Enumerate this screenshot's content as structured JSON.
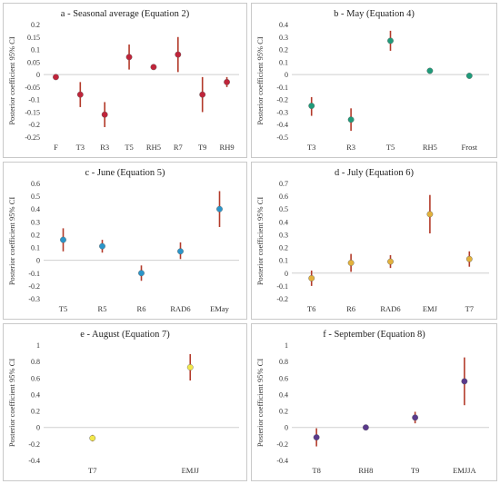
{
  "chart_data": [
    {
      "type": "scatter",
      "title": "a - Seasonal average (Equation 2)",
      "ylabel": "Posterior coefficient  95% CI",
      "ylim": [
        -0.25,
        0.2
      ],
      "ystep": 0.05,
      "yticks": [
        "-0.25",
        "-0.2",
        "-0.15",
        "-0.1",
        "-0.05",
        "0",
        "0.05",
        "0.1",
        "0.15",
        "0.2"
      ],
      "categories": [
        "F",
        "T3",
        "R3",
        "T5",
        "RH5",
        "R7",
        "T9",
        "RH9"
      ],
      "values": [
        -0.01,
        -0.08,
        -0.16,
        0.07,
        0.03,
        0.08,
        -0.08,
        -0.03
      ],
      "lower": [
        -0.01,
        -0.13,
        -0.21,
        0.02,
        0.03,
        0.01,
        -0.15,
        -0.05
      ],
      "upper": [
        -0.01,
        -0.03,
        -0.11,
        0.12,
        0.03,
        0.15,
        -0.01,
        -0.01
      ],
      "marker_color": "#c0243a",
      "bar_color": "#b33a2a"
    },
    {
      "type": "scatter",
      "title": "b - May (Equation 4)",
      "ylabel": "Posterior coefficient  95% CI",
      "ylim": [
        -0.5,
        0.4
      ],
      "ystep": 0.1,
      "yticks": [
        "-0.5",
        "-0.4",
        "-0.3",
        "-0.2",
        "-0.1",
        "0",
        "0.1",
        "0.2",
        "0.3",
        "0.4"
      ],
      "categories": [
        "T3",
        "R3",
        "T5",
        "RH5",
        "Frost"
      ],
      "values": [
        -0.25,
        -0.36,
        0.27,
        0.03,
        -0.01
      ],
      "lower": [
        -0.33,
        -0.45,
        0.19,
        0.03,
        -0.01
      ],
      "upper": [
        -0.18,
        -0.27,
        0.35,
        0.03,
        -0.01
      ],
      "marker_color": "#1f9b7a",
      "bar_color": "#b33a2a"
    },
    {
      "type": "scatter",
      "title": "c - June (Equation 5)",
      "ylabel": "Posterior coefficient  95% CI",
      "ylim": [
        -0.3,
        0.6
      ],
      "ystep": 0.1,
      "yticks": [
        "-0.3",
        "-0.2",
        "-0.1",
        "0",
        "0.1",
        "0.2",
        "0.3",
        "0.4",
        "0.5",
        "0.6"
      ],
      "categories": [
        "T5",
        "R5",
        "R6",
        "RAD6",
        "EMay"
      ],
      "values": [
        0.16,
        0.11,
        -0.1,
        0.07,
        0.4
      ],
      "lower": [
        0.07,
        0.06,
        -0.16,
        0.01,
        0.26
      ],
      "upper": [
        0.25,
        0.16,
        -0.04,
        0.14,
        0.54
      ],
      "marker_color": "#2b95c9",
      "bar_color": "#b33a2a"
    },
    {
      "type": "scatter",
      "title": "d - July (Equation 6)",
      "ylabel": "Posterior coefficient  95% CI",
      "ylim": [
        -0.2,
        0.7
      ],
      "ystep": 0.1,
      "yticks": [
        "-0.2",
        "-0.1",
        "0",
        "0.1",
        "0.2",
        "0.3",
        "0.4",
        "0.5",
        "0.6",
        "0.7"
      ],
      "categories": [
        "T6",
        "R6",
        "RAD6",
        "EMJ",
        "T7"
      ],
      "values": [
        -0.04,
        0.08,
        0.09,
        0.46,
        0.11
      ],
      "lower": [
        -0.1,
        0.01,
        0.04,
        0.31,
        0.05
      ],
      "upper": [
        0.02,
        0.15,
        0.14,
        0.61,
        0.17
      ],
      "marker_color": "#e3b23c",
      "bar_color": "#b33a2a"
    },
    {
      "type": "scatter",
      "title": "e - August (Equation 7)",
      "ylabel": "Posterior coefficient  95% CI",
      "ylim": [
        -0.4,
        1.0
      ],
      "ystep": 0.2,
      "yticks": [
        "-0.4",
        "-0.2",
        "0",
        "0.2",
        "0.4",
        "0.6",
        "0.8",
        "1"
      ],
      "categories": [
        "T7",
        "EMJJ"
      ],
      "values": [
        -0.13,
        0.73
      ],
      "lower": [
        -0.17,
        0.57
      ],
      "upper": [
        -0.09,
        0.89
      ],
      "marker_color": "#f2e84b",
      "bar_color": "#b33a2a"
    },
    {
      "type": "scatter",
      "title": "f - September (Equation 8)",
      "ylabel": "Posterior coefficient  95% CI",
      "ylim": [
        -0.4,
        1.0
      ],
      "ystep": 0.2,
      "yticks": [
        "-0.4",
        "-0.2",
        "0",
        "0.2",
        "0.4",
        "0.6",
        "0.8",
        "1"
      ],
      "categories": [
        "T8",
        "RH8",
        "T9",
        "EMJJA"
      ],
      "values": [
        -0.12,
        0.0,
        0.12,
        0.56
      ],
      "lower": [
        -0.23,
        0.0,
        0.05,
        0.27
      ],
      "upper": [
        -0.01,
        0.0,
        0.19,
        0.85
      ],
      "marker_color": "#5a3a8c",
      "bar_color": "#b33a2a"
    }
  ]
}
